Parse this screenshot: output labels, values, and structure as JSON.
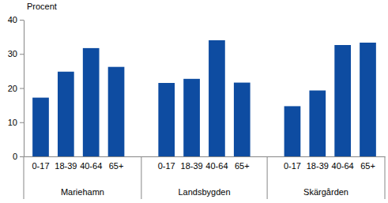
{
  "chart_data": {
    "type": "bar",
    "y_label": "Procent",
    "categories": [
      "0-17",
      "18-39",
      "40-64",
      "65+",
      "0-17",
      "18-39",
      "40-64",
      "65+",
      "0-17",
      "18-39",
      "40-64",
      "65+"
    ],
    "groups": [
      "Mariehamn",
      "Landsbygden",
      "Skärgården"
    ],
    "values": [
      17.2,
      24.8,
      31.7,
      26.2,
      21.5,
      22.7,
      34.0,
      21.6,
      14.7,
      19.3,
      32.6,
      33.3
    ],
    "color": "#0e4ca1",
    "ylim": [
      0,
      40
    ],
    "yticks": [
      0,
      10,
      20,
      30,
      40
    ],
    "grid": false
  }
}
